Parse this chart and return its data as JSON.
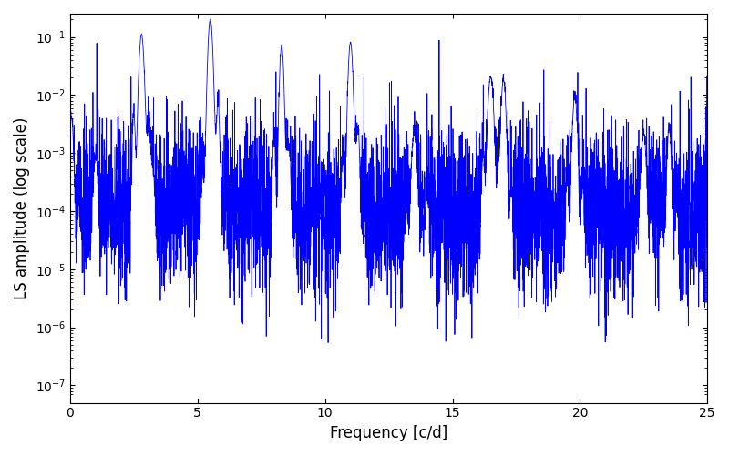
{
  "title": "",
  "xlabel": "Frequency [c/d]",
  "ylabel": "LS amplitude (log scale)",
  "xlim": [
    0,
    25
  ],
  "ylim_log": [
    -7.3,
    -0.6
  ],
  "line_color": "#0000ff",
  "line_width": 0.6,
  "background_color": "#ffffff",
  "freq_min": 0.0,
  "freq_max": 25.0,
  "n_points": 5000,
  "seed": 42,
  "peaks": [
    {
      "freq": 0.05,
      "amp": 0.004
    },
    {
      "freq": 1.0,
      "amp": 0.0008
    },
    {
      "freq": 2.8,
      "amp": 0.11
    },
    {
      "freq": 3.0,
      "amp": 0.0015
    },
    {
      "freq": 3.2,
      "amp": 0.0006
    },
    {
      "freq": 5.5,
      "amp": 0.2
    },
    {
      "freq": 5.6,
      "amp": 0.003
    },
    {
      "freq": 5.8,
      "amp": 0.001
    },
    {
      "freq": 8.3,
      "amp": 0.07
    },
    {
      "freq": 8.5,
      "amp": 0.001
    },
    {
      "freq": 11.0,
      "amp": 0.08
    },
    {
      "freq": 11.2,
      "amp": 0.0012
    },
    {
      "freq": 13.5,
      "amp": 0.002
    },
    {
      "freq": 14.0,
      "amp": 0.00015
    },
    {
      "freq": 16.5,
      "amp": 0.02
    },
    {
      "freq": 17.0,
      "amp": 0.018
    },
    {
      "freq": 19.8,
      "amp": 0.009
    },
    {
      "freq": 22.5,
      "amp": 0.002
    },
    {
      "freq": 23.5,
      "amp": 0.0025
    }
  ],
  "noise_floor_log": -4.0,
  "noise_amplitude_log": 1.5,
  "yticks": [
    1e-07,
    1e-06,
    1e-05,
    0.0001,
    0.001,
    0.01,
    0.1
  ],
  "xticks": [
    0,
    5,
    10,
    15,
    20,
    25
  ]
}
